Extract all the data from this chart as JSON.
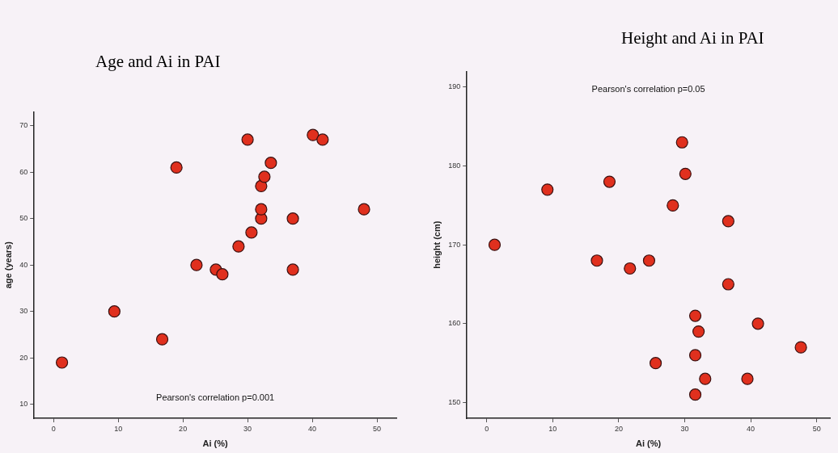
{
  "chart_data": [
    {
      "type": "scatter",
      "title": "Age and Ai in PAI",
      "xlabel": "Ai (%)",
      "ylabel": "age (years)",
      "marker": "circle",
      "color": "#e0301e",
      "x": [
        1.3,
        9.4,
        16.8,
        19,
        22.1,
        25.1,
        26.1,
        28.6,
        30,
        30.6,
        32.1,
        32.1,
        32.1,
        32.6,
        33.6,
        37,
        37,
        40.1,
        41.6,
        48
      ],
      "values": [
        19,
        30,
        24,
        61,
        40,
        39,
        38,
        44,
        67,
        47,
        50,
        52,
        57,
        59,
        62,
        50,
        39,
        68,
        67,
        52
      ],
      "xlim": [
        -3,
        53
      ],
      "xticks": [
        0,
        10,
        20,
        30,
        40,
        50
      ],
      "ylim": [
        7,
        73
      ],
      "yticks": [
        10,
        20,
        30,
        40,
        50,
        60,
        70
      ],
      "annotations": [
        "Pearson's correlation p=0.001"
      ]
    },
    {
      "type": "scatter",
      "title": "Height and Ai in PAI",
      "xlabel": "Ai (%)",
      "ylabel": "height (cm)",
      "marker": "circle",
      "color": "#e0301e",
      "x": [
        1.2,
        9.2,
        16.7,
        18.6,
        21.7,
        24.6,
        25.6,
        28.2,
        29.6,
        30.1,
        31.6,
        32.1,
        31.6,
        31.6,
        33.1,
        36.6,
        36.6,
        41.1,
        39.5,
        47.6
      ],
      "values": [
        170,
        177,
        168,
        178,
        167,
        168,
        155,
        175,
        183,
        179,
        161,
        159,
        156,
        151,
        153,
        173,
        165,
        160,
        153,
        157
      ],
      "xlim": [
        -3,
        52
      ],
      "xticks": [
        0,
        10,
        20,
        30,
        40,
        50
      ],
      "ylim": [
        148,
        192
      ],
      "yticks": [
        150,
        160,
        170,
        180,
        190
      ],
      "annotations": [
        "Pearson's correlation p=0.05"
      ]
    }
  ]
}
